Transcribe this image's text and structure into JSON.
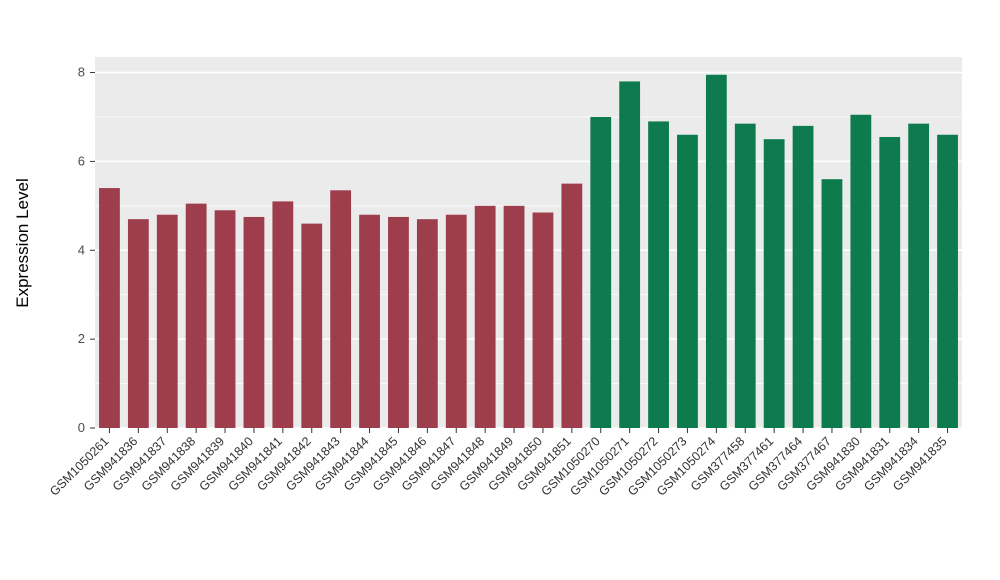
{
  "chart_data": {
    "type": "bar",
    "title": "",
    "xlabel": "",
    "ylabel": "Expression Level",
    "ylim": [
      0,
      8.35
    ],
    "yticks": [
      0,
      2,
      4,
      6,
      8
    ],
    "grid": "on",
    "legend": "none",
    "panel_background": "#EBEBEB",
    "grid_color": "#FFFFFF",
    "group_colors": {
      "maroon": "#9E3D4C",
      "green": "#0E7B4E"
    },
    "bars": [
      {
        "label": "GSM1050261",
        "value": 5.4,
        "group": "maroon"
      },
      {
        "label": "GSM941836",
        "value": 4.7,
        "group": "maroon"
      },
      {
        "label": "GSM941837",
        "value": 4.8,
        "group": "maroon"
      },
      {
        "label": "GSM941838",
        "value": 5.05,
        "group": "maroon"
      },
      {
        "label": "GSM941839",
        "value": 4.9,
        "group": "maroon"
      },
      {
        "label": "GSM941840",
        "value": 4.75,
        "group": "maroon"
      },
      {
        "label": "GSM941841",
        "value": 5.1,
        "group": "maroon"
      },
      {
        "label": "GSM941842",
        "value": 4.6,
        "group": "maroon"
      },
      {
        "label": "GSM941843",
        "value": 5.35,
        "group": "maroon"
      },
      {
        "label": "GSM941844",
        "value": 4.8,
        "group": "maroon"
      },
      {
        "label": "GSM941845",
        "value": 4.75,
        "group": "maroon"
      },
      {
        "label": "GSM941846",
        "value": 4.7,
        "group": "maroon"
      },
      {
        "label": "GSM941847",
        "value": 4.8,
        "group": "maroon"
      },
      {
        "label": "GSM941848",
        "value": 5.0,
        "group": "maroon"
      },
      {
        "label": "GSM941849",
        "value": 5.0,
        "group": "maroon"
      },
      {
        "label": "GSM941850",
        "value": 4.85,
        "group": "maroon"
      },
      {
        "label": "GSM941851",
        "value": 5.5,
        "group": "maroon"
      },
      {
        "label": "GSM1050270",
        "value": 7.0,
        "group": "green"
      },
      {
        "label": "GSM1050271",
        "value": 7.8,
        "group": "green"
      },
      {
        "label": "GSM1050272",
        "value": 6.9,
        "group": "green"
      },
      {
        "label": "GSM1050273",
        "value": 6.6,
        "group": "green"
      },
      {
        "label": "GSM1050274",
        "value": 7.95,
        "group": "green"
      },
      {
        "label": "GSM377458",
        "value": 6.85,
        "group": "green"
      },
      {
        "label": "GSM377461",
        "value": 6.5,
        "group": "green"
      },
      {
        "label": "GSM377464",
        "value": 6.8,
        "group": "green"
      },
      {
        "label": "GSM377467",
        "value": 5.6,
        "group": "green"
      },
      {
        "label": "GSM941830",
        "value": 7.05,
        "group": "green"
      },
      {
        "label": "GSM941831",
        "value": 6.55,
        "group": "green"
      },
      {
        "label": "GSM941834",
        "value": 6.85,
        "group": "green"
      },
      {
        "label": "GSM941835",
        "value": 6.6,
        "group": "green"
      }
    ]
  }
}
